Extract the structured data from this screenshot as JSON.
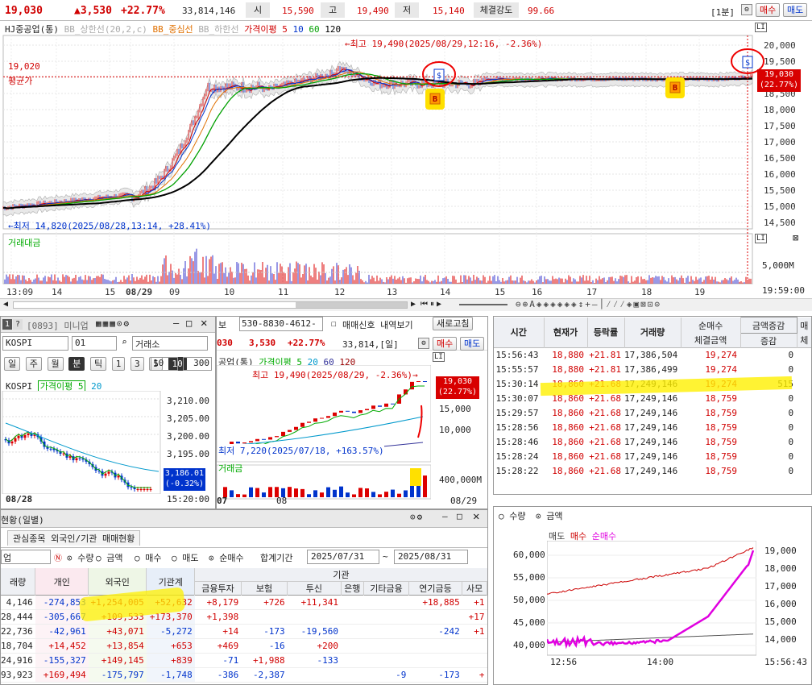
{
  "quote": {
    "price": "19,030",
    "change": "▲3,530",
    "rate": "+22.77%",
    "volume": "33,814,146",
    "open_label": "시",
    "open": "15,590",
    "high_label": "고",
    "high": "19,490",
    "low_label": "저",
    "low": "15,140",
    "strength_label": "체결강도",
    "strength": "99.66",
    "interval": "[1분]",
    "buy": "매수",
    "sell": "매도"
  },
  "main_chart": {
    "legend": [
      "HJ중공업(통)",
      "BB_상한선(20,2,c)",
      "BB_중심선",
      "BB_하한선",
      "가격이평 5",
      "10",
      "60",
      "120"
    ],
    "legend_colors": [
      "#222",
      "#aaa",
      "#e07000",
      "#aaa",
      "#d00000",
      "#0033cc",
      "#00a000",
      "#000"
    ],
    "high_note": "←최고 19,490(2025/08/29,12:16, -2.36%)",
    "low_note": "←최저 14,820(2025/08/28,13:14, +28.41%)",
    "avg_value": "19,020",
    "avg_label": "평균가",
    "cur_price": "19,030",
    "cur_rate": "(22.77%)",
    "y_ticks": [
      "20,000",
      "19,500",
      "19,000",
      "18,500",
      "18,000",
      "17,500",
      "17,000",
      "16,500",
      "16,000",
      "15,500",
      "15,000",
      "14,500"
    ],
    "y_values": [
      20000,
      19500,
      19000,
      18500,
      18000,
      17500,
      17000,
      16500,
      16000,
      15500,
      15000,
      14500
    ],
    "ylim": [
      14300,
      20300
    ],
    "vol_label": "거래대금",
    "vol_tick": "5,000M",
    "x_ticks": [
      "13:09",
      "14",
      "15",
      "08/29",
      "09",
      "10",
      "11",
      "12",
      "13",
      "14",
      "15",
      "16",
      "17",
      "18",
      "19"
    ],
    "time": "19:59:00",
    "buy_mark": "B",
    "sell_mark": "$",
    "ctrl_l": "LI",
    "ctrl_x": "⊠"
  },
  "mini": {
    "title": "[0893] 미니업",
    "code": "KOSPI",
    "code2": "01",
    "exch": "거래소",
    "periods": [
      "일",
      "주",
      "월",
      "분",
      "틱",
      "1",
      "3",
      "5",
      "10"
    ],
    "interval": "10",
    "count": "300",
    "series": "KOSPI",
    "ma_label": "가격이평 5",
    "ma2": "20",
    "y_ticks": [
      "3,210.00",
      "3,205.00",
      "3,200.00",
      "3,195.00"
    ],
    "cur": "3,186.01",
    "cur_rate": "(-0.32%)",
    "date": "08/28",
    "time": "15:20:00"
  },
  "daily": {
    "account": "530-8830-4612-",
    "account_prefix": "보",
    "signal": "매매신호 내역보기",
    "refresh": "새로고침",
    "code_prefix": "030",
    "price": "3,530",
    "rate": "+22.77%",
    "vol": "33,814,[일]",
    "buy": "매수",
    "sell": "매도",
    "title": "공업(통)",
    "ma": "가격이평 5",
    "ma2": "20",
    "ma3": "60",
    "ma4": "120",
    "high_note": "최고 19,490(2025/08/29, -2.36%)→",
    "low_note": "최저 7,220(2025/07/18, +163.57%)",
    "cur": "19,030",
    "cur_rate": "(22.77%)",
    "y_ticks": [
      "15,000",
      "10,000"
    ],
    "vol_label": "거래금",
    "vol_tick": "400,000M",
    "x_labels": [
      "07",
      "08",
      "08/29"
    ]
  },
  "trades": {
    "headers": [
      "시간",
      "현재가",
      "등락률",
      "거래량",
      "순매수",
      "체결금액",
      "증감",
      "매"
    ],
    "sub_select": "금액증감",
    "sub_last": "체",
    "rows": [
      [
        "15:56:43",
        "18,880",
        "+21.81",
        "17,386,504",
        "19,274",
        "0"
      ],
      [
        "15:55:57",
        "18,880",
        "+21.81",
        "17,386,499",
        "19,274",
        "0"
      ],
      [
        "15:30:14",
        "18,860",
        "+21.68",
        "17,249,146",
        "19,274",
        "515"
      ],
      [
        "15:30:07",
        "18,860",
        "+21.68",
        "17,249,146",
        "18,759",
        "0"
      ],
      [
        "15:29:57",
        "18,860",
        "+21.68",
        "17,249,146",
        "18,759",
        "0"
      ],
      [
        "15:28:56",
        "18,860",
        "+21.68",
        "17,249,146",
        "18,759",
        "0"
      ],
      [
        "15:28:46",
        "18,860",
        "+21.68",
        "17,249,146",
        "18,759",
        "0"
      ],
      [
        "15:28:24",
        "18,860",
        "+21.68",
        "17,249,146",
        "18,759",
        "0"
      ],
      [
        "15:28:22",
        "18,860",
        "+21.68",
        "17,249,146",
        "18,759",
        "0"
      ]
    ]
  },
  "flow": {
    "radio1": "수량",
    "radio2": "금액",
    "legend": [
      "매도",
      "매수",
      "순매수"
    ],
    "y_left": [
      "60,000",
      "55,000",
      "50,000",
      "45,000",
      "40,000"
    ],
    "y_right": [
      "19,000",
      "18,000",
      "17,000",
      "16,000",
      "15,000",
      "14,000"
    ],
    "x": [
      "12:56",
      "14:00"
    ],
    "time": "15:56:43"
  },
  "invest": {
    "title": "현황(일별)",
    "tab": "관심종목 외국인/기관 매매현황",
    "stock": "업",
    "radios": [
      "수량",
      "금액",
      "매수",
      "매도",
      "순매수"
    ],
    "period_label": "합계기간",
    "from": "2025/07/31",
    "to": "2025/08/31",
    "group": "기관",
    "headers": [
      "래량",
      "개인",
      "외국인",
      "기관계",
      "금융투자",
      "보험",
      "투신",
      "은행",
      "기타금융",
      "연기금등",
      "사모"
    ],
    "rows": [
      [
        "4,146",
        "-274,853",
        "+1,254,005",
        "+52,632",
        "+8,179",
        "+726",
        "+11,341",
        "",
        "",
        "+18,885",
        "+1"
      ],
      [
        "28,444",
        "-305,667",
        "+109,533",
        "+173,370",
        "+1,398",
        "",
        "",
        "",
        "",
        "",
        "+17"
      ],
      [
        "22,736",
        "-42,961",
        "+43,071",
        "-5,272",
        "+14",
        "-173",
        "-19,560",
        "",
        "",
        "-242",
        "+1"
      ],
      [
        "18,704",
        "+14,452",
        "+13,854",
        "+653",
        "+469",
        "-16",
        "+200",
        "",
        "",
        "",
        ""
      ],
      [
        "24,916",
        "-155,327",
        "+149,145",
        "+839",
        "-71",
        "+1,988",
        "-133",
        "",
        "",
        "",
        ""
      ],
      [
        "93,923",
        "+169,494",
        "-175,797",
        "-1,748",
        "-386",
        "-2,387",
        "",
        "",
        "-9",
        "-173",
        "+"
      ]
    ]
  }
}
